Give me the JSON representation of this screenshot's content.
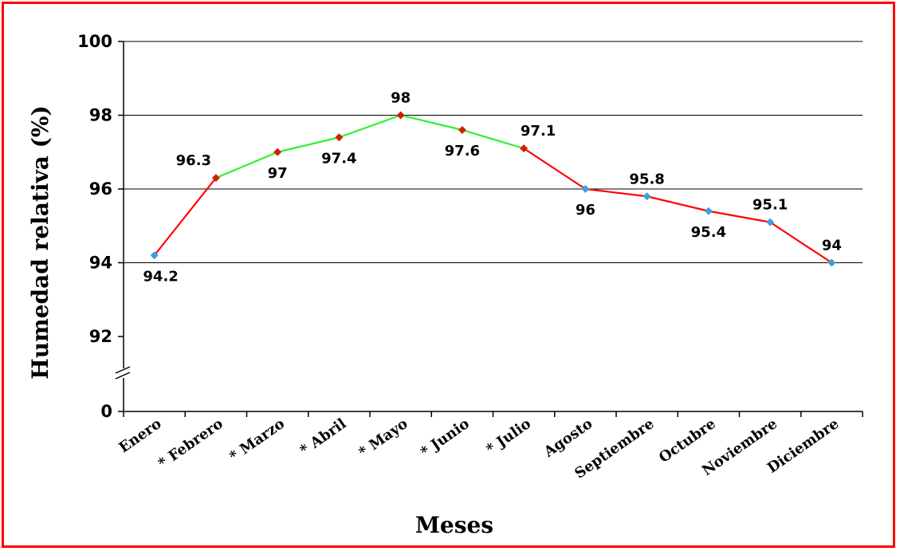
{
  "chart_data": {
    "type": "line",
    "xlabel": "Meses",
    "ylabel": "Humedad relativa (%)",
    "categories": [
      "Enero",
      "* Febrero",
      "* Marzo",
      "* Abril",
      "* Mayo",
      "* Junio",
      "* Julio",
      "Agosto",
      "Septiembre",
      "Octubre",
      "Noviembre",
      "Diciembre"
    ],
    "values": [
      94.2,
      96.3,
      97,
      97.4,
      98,
      97.6,
      97.1,
      96,
      95.8,
      95.4,
      95.1,
      94
    ],
    "data_labels": [
      "94.2",
      "96.3",
      "97",
      "97.4",
      "98",
      "97.6",
      "97.1",
      "96",
      "95.8",
      "95.4",
      "95.1",
      "94"
    ],
    "highlighted_categories": [
      "* Febrero",
      "* Marzo",
      "* Abril",
      "* Mayo",
      "* Junio",
      "* Julio"
    ],
    "ylim": [
      92,
      100
    ],
    "y_ticks": [
      "0",
      "92",
      "94",
      "96",
      "98",
      "100"
    ],
    "y_axis_break": true,
    "grid": "horizontal",
    "legend": false,
    "colors": {
      "frame": "#ff0000",
      "line_default": "#ff0000",
      "line_highlight": "#33ee33",
      "marker_default": "#3aa0e0",
      "marker_highlight": "#cc2200",
      "grid": "#000000"
    }
  }
}
